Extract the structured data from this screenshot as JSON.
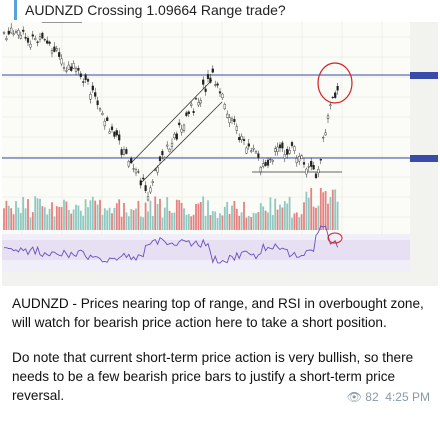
{
  "header": {
    "title": "AUDNZD Crossing 1.09664 Range trade?"
  },
  "message": {
    "paragraphs": [
      [
        "AUDNZD - Prices nearing top of range, and RSI in overbought zone,",
        "will watch for bearish price action here to take a short position."
      ],
      [
        "Do note that current short-term price action is very bullish, so there",
        "needs to be a few bearish price bars to justify a short-term price",
        "reversal."
      ]
    ],
    "views": 82,
    "time": "4:25 PM"
  }
}
